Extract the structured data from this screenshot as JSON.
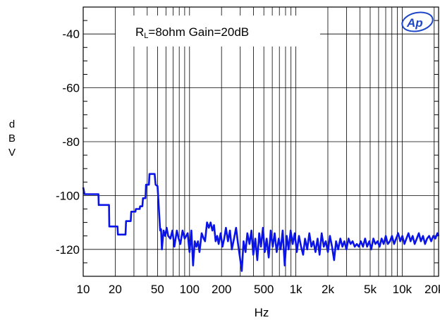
{
  "chart_data": {
    "type": "line",
    "title": "",
    "xlabel": "Hz",
    "ylabel": "dBV",
    "xscale": "log",
    "xlim": [
      10,
      22000
    ],
    "ylim": [
      -130,
      -30
    ],
    "grid": true,
    "x_ticks": [
      {
        "value": 10,
        "label": "10"
      },
      {
        "value": 20,
        "label": "20"
      },
      {
        "value": 50,
        "label": "50"
      },
      {
        "value": 100,
        "label": "100"
      },
      {
        "value": 200,
        "label": "200"
      },
      {
        "value": 500,
        "label": "500"
      },
      {
        "value": 1000,
        "label": "1k"
      },
      {
        "value": 2000,
        "label": "2k"
      },
      {
        "value": 5000,
        "label": "5k"
      },
      {
        "value": 10000,
        "label": "10k"
      },
      {
        "value": 20000,
        "label": "20k"
      }
    ],
    "y_ticks": [
      {
        "value": -40,
        "label": "-40"
      },
      {
        "value": -60,
        "label": "-60"
      },
      {
        "value": -80,
        "label": "-80"
      },
      {
        "value": -100,
        "label": "-100"
      },
      {
        "value": -120,
        "label": "-120"
      }
    ],
    "annotation": {
      "main": "R",
      "sub": "L",
      "rest": "=8ohm Gain=20dB"
    },
    "logo": "Ap",
    "series": [
      {
        "color": "#0a14e6",
        "points": [
          [
            10,
            -97
          ],
          [
            10.3,
            -99.5
          ],
          [
            12,
            -99.5
          ],
          [
            13.9,
            -99.5
          ],
          [
            14,
            -103.5
          ],
          [
            17.5,
            -103.5
          ],
          [
            17.6,
            -111.5
          ],
          [
            21,
            -111.5
          ],
          [
            21.2,
            -114.5
          ],
          [
            25,
            -114.5
          ],
          [
            25.3,
            -109.5
          ],
          [
            28,
            -109.5
          ],
          [
            28.3,
            -106
          ],
          [
            31,
            -106
          ],
          [
            31.3,
            -105
          ],
          [
            34,
            -105
          ],
          [
            34.3,
            -104
          ],
          [
            36,
            -104
          ],
          [
            36.5,
            -101
          ],
          [
            38.5,
            -101
          ],
          [
            39,
            -96
          ],
          [
            41.5,
            -96
          ],
          [
            42,
            -92
          ],
          [
            47,
            -92
          ],
          [
            48,
            -96
          ],
          [
            50,
            -96.5
          ],
          [
            51,
            -102
          ],
          [
            52,
            -108
          ],
          [
            53,
            -113
          ],
          [
            54,
            -112.5
          ],
          [
            55,
            -120
          ],
          [
            57,
            -113
          ],
          [
            59,
            -115
          ],
          [
            61,
            -112
          ],
          [
            63,
            -115
          ],
          [
            66,
            -116
          ],
          [
            69,
            -113
          ],
          [
            72,
            -119
          ],
          [
            76,
            -113
          ],
          [
            79,
            -116
          ],
          [
            82,
            -118
          ],
          [
            86,
            -113
          ],
          [
            90,
            -116
          ],
          [
            93,
            -115
          ],
          [
            96,
            -114
          ],
          [
            100,
            -121
          ],
          [
            104,
            -113
          ],
          [
            108,
            -126
          ],
          [
            112,
            -117
          ],
          [
            116,
            -119
          ],
          [
            120,
            -117
          ],
          [
            124,
            -121
          ],
          [
            130,
            -114
          ],
          [
            136,
            -116
          ],
          [
            140,
            -117
          ],
          [
            146,
            -110
          ],
          [
            152,
            -112
          ],
          [
            158,
            -110
          ],
          [
            164,
            -113
          ],
          [
            170,
            -111
          ],
          [
            176,
            -117
          ],
          [
            182,
            -115
          ],
          [
            188,
            -118
          ],
          [
            196,
            -114
          ],
          [
            204,
            -119
          ],
          [
            212,
            -116
          ],
          [
            220,
            -112
          ],
          [
            230,
            -117
          ],
          [
            240,
            -113
          ],
          [
            250,
            -120
          ],
          [
            262,
            -116
          ],
          [
            274,
            -112
          ],
          [
            286,
            -118
          ],
          [
            298,
            -123
          ],
          [
            310,
            -128
          ],
          [
            322,
            -117
          ],
          [
            336,
            -121
          ],
          [
            350,
            -114
          ],
          [
            366,
            -118
          ],
          [
            382,
            -113
          ],
          [
            398,
            -122
          ],
          [
            416,
            -116
          ],
          [
            434,
            -124
          ],
          [
            452,
            -114
          ],
          [
            470,
            -119
          ],
          [
            490,
            -112
          ],
          [
            510,
            -121
          ],
          [
            532,
            -116
          ],
          [
            556,
            -123
          ],
          [
            580,
            -113
          ],
          [
            606,
            -119
          ],
          [
            632,
            -114
          ],
          [
            660,
            -121
          ],
          [
            690,
            -116
          ],
          [
            720,
            -120
          ],
          [
            752,
            -113
          ],
          [
            786,
            -126
          ],
          [
            820,
            -115
          ],
          [
            856,
            -120
          ],
          [
            894,
            -113
          ],
          [
            934,
            -118
          ],
          [
            976,
            -114
          ],
          [
            1020,
            -121
          ],
          [
            1070,
            -115
          ],
          [
            1120,
            -119
          ],
          [
            1170,
            -122
          ],
          [
            1220,
            -116
          ],
          [
            1280,
            -120
          ],
          [
            1340,
            -114
          ],
          [
            1400,
            -119
          ],
          [
            1460,
            -117
          ],
          [
            1530,
            -121
          ],
          [
            1600,
            -116
          ],
          [
            1670,
            -122
          ],
          [
            1750,
            -114
          ],
          [
            1830,
            -119
          ],
          [
            1910,
            -117
          ],
          [
            2000,
            -121
          ],
          [
            2090,
            -115
          ],
          [
            2190,
            -119
          ],
          [
            2290,
            -124
          ],
          [
            2390,
            -117
          ],
          [
            2500,
            -120
          ],
          [
            2620,
            -116
          ],
          [
            2740,
            -119
          ],
          [
            2860,
            -117
          ],
          [
            2990,
            -120
          ],
          [
            3130,
            -116
          ],
          [
            3270,
            -118
          ],
          [
            3420,
            -117
          ],
          [
            3580,
            -119
          ],
          [
            3740,
            -118
          ],
          [
            3910,
            -119
          ],
          [
            4090,
            -117
          ],
          [
            4280,
            -119
          ],
          [
            4480,
            -116
          ],
          [
            4680,
            -119
          ],
          [
            4900,
            -117
          ],
          [
            5120,
            -120
          ],
          [
            5360,
            -116
          ],
          [
            5600,
            -118
          ],
          [
            5860,
            -117
          ],
          [
            6130,
            -119
          ],
          [
            6410,
            -116
          ],
          [
            6700,
            -118
          ],
          [
            7010,
            -115
          ],
          [
            7330,
            -118
          ],
          [
            7670,
            -117
          ],
          [
            8020,
            -115
          ],
          [
            8390,
            -118
          ],
          [
            8770,
            -116
          ],
          [
            9170,
            -114
          ],
          [
            9590,
            -117
          ],
          [
            10030,
            -115
          ],
          [
            10490,
            -118
          ],
          [
            10970,
            -116
          ],
          [
            11470,
            -114
          ],
          [
            12000,
            -117
          ],
          [
            12550,
            -115
          ],
          [
            13120,
            -118
          ],
          [
            13720,
            -116
          ],
          [
            14350,
            -114
          ],
          [
            15000,
            -117
          ],
          [
            15700,
            -115
          ],
          [
            16400,
            -118
          ],
          [
            17150,
            -116
          ],
          [
            17930,
            -115
          ],
          [
            18750,
            -117
          ],
          [
            19610,
            -115
          ],
          [
            20500,
            -116
          ],
          [
            21440,
            -114
          ],
          [
            22000,
            -115
          ]
        ]
      }
    ]
  }
}
